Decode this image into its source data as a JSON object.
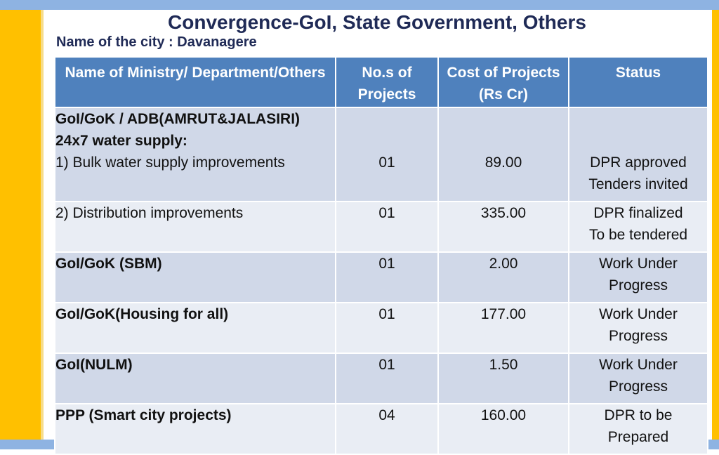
{
  "slide": {
    "title": "Convergence-GoI, State Government, Others",
    "city_line": "Name of the city : Davanagere"
  },
  "table": {
    "headers": {
      "name": "Name   of Ministry/ Department/Others",
      "count": "No.s of Projects",
      "cost": "Cost of Projects (Rs Cr)",
      "status": "Status"
    },
    "rows": [
      {
        "heading1": "GoI/GoK / ADB(AMRUT&JALASIRI)",
        "heading2": "24x7 water supply:",
        "item": "1) Bulk water supply improvements",
        "count": "01",
        "cost": "89.00",
        "status1": "DPR approved",
        "status2": "Tenders invited"
      },
      {
        "item": "2) Distribution improvements",
        "count": "01",
        "cost": "335.00",
        "status1": "DPR finalized",
        "status2": "To be tendered"
      },
      {
        "item": "GoI/GoK (SBM)",
        "count": "01",
        "cost": "2.00",
        "status1": "Work Under",
        "status2": "Progress"
      },
      {
        "item": "GoI/GoK(Housing for all)",
        "count": "01",
        "cost": "177.00",
        "status1": "Work Under",
        "status2": "Progress"
      },
      {
        "item": "GoI(NULM)",
        "count": "01",
        "cost": "1.50",
        "status1": "Work Under",
        "status2": "Progress"
      },
      {
        "item": "PPP (Smart city projects)",
        "count": "04",
        "cost": "160.00",
        "status1": "DPR to be",
        "status2": "Prepared"
      }
    ]
  },
  "colors": {
    "header_fill": "#4f81bd",
    "row_fill": "#d0d8e8",
    "row_alt_fill": "#e9edf4",
    "title_color": "#1f2a56",
    "side_bar": "#ffc000",
    "top_bar": "#8eb3e2"
  }
}
